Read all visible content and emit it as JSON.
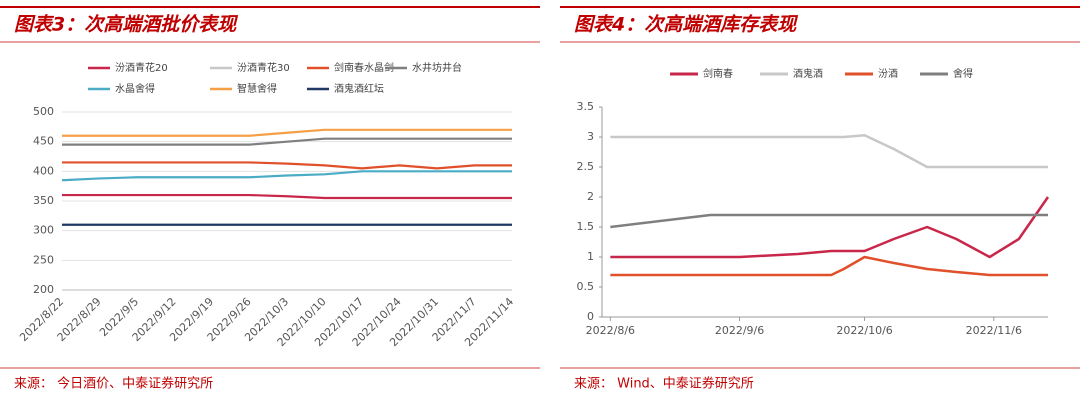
{
  "chart_data": [
    {
      "type": "line",
      "title": "图表3：次高端酒批价表现",
      "source": "来源： 今日酒价、中泰证券研究所",
      "categories": [
        "2022/8/22",
        "2022/8/29",
        "2022/9/5",
        "2022/9/12",
        "2022/9/19",
        "2022/9/26",
        "2022/10/3",
        "2022/10/10",
        "2022/10/17",
        "2022/10/24",
        "2022/10/31",
        "2022/11/7",
        "2022/11/14"
      ],
      "series": [
        {
          "name": "汾酒青花20",
          "color": "#c8274a",
          "values": [
            360,
            360,
            360,
            360,
            360,
            360,
            358,
            355,
            355,
            355,
            355,
            355,
            355
          ]
        },
        {
          "name": "汾酒青花30",
          "color": "#c8c8c8",
          "values": [
            null,
            null,
            null,
            null,
            null,
            null,
            null,
            null,
            null,
            null,
            null,
            null,
            null
          ]
        },
        {
          "name": "剑南春水晶剑",
          "color": "#e0502a",
          "values": [
            415,
            415,
            415,
            415,
            415,
            415,
            413,
            410,
            405,
            410,
            405,
            410,
            410
          ]
        },
        {
          "name": "水井坊井台",
          "color": "#7f7f7f",
          "values": [
            445,
            445,
            445,
            445,
            445,
            445,
            450,
            455,
            455,
            455,
            455,
            455,
            455
          ]
        },
        {
          "name": "水晶舍得",
          "color": "#4bacc6",
          "values": [
            385,
            388,
            390,
            390,
            390,
            390,
            393,
            395,
            400,
            400,
            400,
            400,
            400
          ]
        },
        {
          "name": "智慧舍得",
          "color": "#f5a046",
          "values": [
            460,
            460,
            460,
            460,
            460,
            460,
            465,
            470,
            470,
            470,
            470,
            470,
            470
          ]
        },
        {
          "name": "酒鬼酒红坛",
          "color": "#1f3864",
          "values": [
            310,
            310,
            310,
            310,
            310,
            310,
            310,
            310,
            310,
            310,
            310,
            310,
            310
          ]
        }
      ],
      "ylim": [
        200,
        500
      ],
      "yticks": [
        200,
        250,
        300,
        350,
        400,
        450,
        500
      ],
      "grid": true,
      "legend_position": "top"
    },
    {
      "type": "line",
      "title": "图表4：次高端酒库存表现",
      "source": "来源： Wind、中泰证券研究所",
      "x": [
        "2022/8/6",
        "2022/8/30",
        "2022/9/6",
        "2022/9/20",
        "2022/9/28",
        "2022/10/1",
        "2022/10/6",
        "2022/10/13",
        "2022/10/21",
        "2022/10/28",
        "2022/11/5",
        "2022/11/12",
        "2022/11/19"
      ],
      "series": [
        {
          "name": "剑南春",
          "color": "#c8274a",
          "values": [
            1,
            1,
            1,
            1.05,
            1.1,
            1.1,
            1.1,
            1.3,
            1.5,
            1.3,
            1,
            1.3,
            2
          ]
        },
        {
          "name": "酒鬼酒",
          "color": "#c8c8c8",
          "values": [
            3,
            3,
            3,
            3,
            3,
            3,
            3.03,
            2.8,
            2.5,
            2.5,
            2.5,
            2.5,
            2.5
          ]
        },
        {
          "name": "汾酒",
          "color": "#e0502a",
          "values": [
            0.7,
            0.7,
            0.7,
            0.7,
            0.7,
            0.8,
            1,
            0.9,
            0.8,
            0.75,
            0.7,
            0.7,
            0.7
          ]
        },
        {
          "name": "舍得",
          "color": "#7f7f7f",
          "values": [
            1.5,
            1.7,
            1.7,
            1.7,
            1.7,
            1.7,
            1.7,
            1.7,
            1.7,
            1.7,
            1.7,
            1.7,
            1.7
          ]
        }
      ],
      "xlim": [
        "2022/8/4",
        "2022/11/19"
      ],
      "xticks": [
        "2022/8/6",
        "2022/9/6",
        "2022/10/6",
        "2022/11/6"
      ],
      "ylim": [
        0,
        3.5
      ],
      "yticks": [
        0,
        0.5,
        1,
        1.5,
        2,
        2.5,
        3,
        3.5
      ],
      "grid": false,
      "legend_position": "top"
    }
  ]
}
